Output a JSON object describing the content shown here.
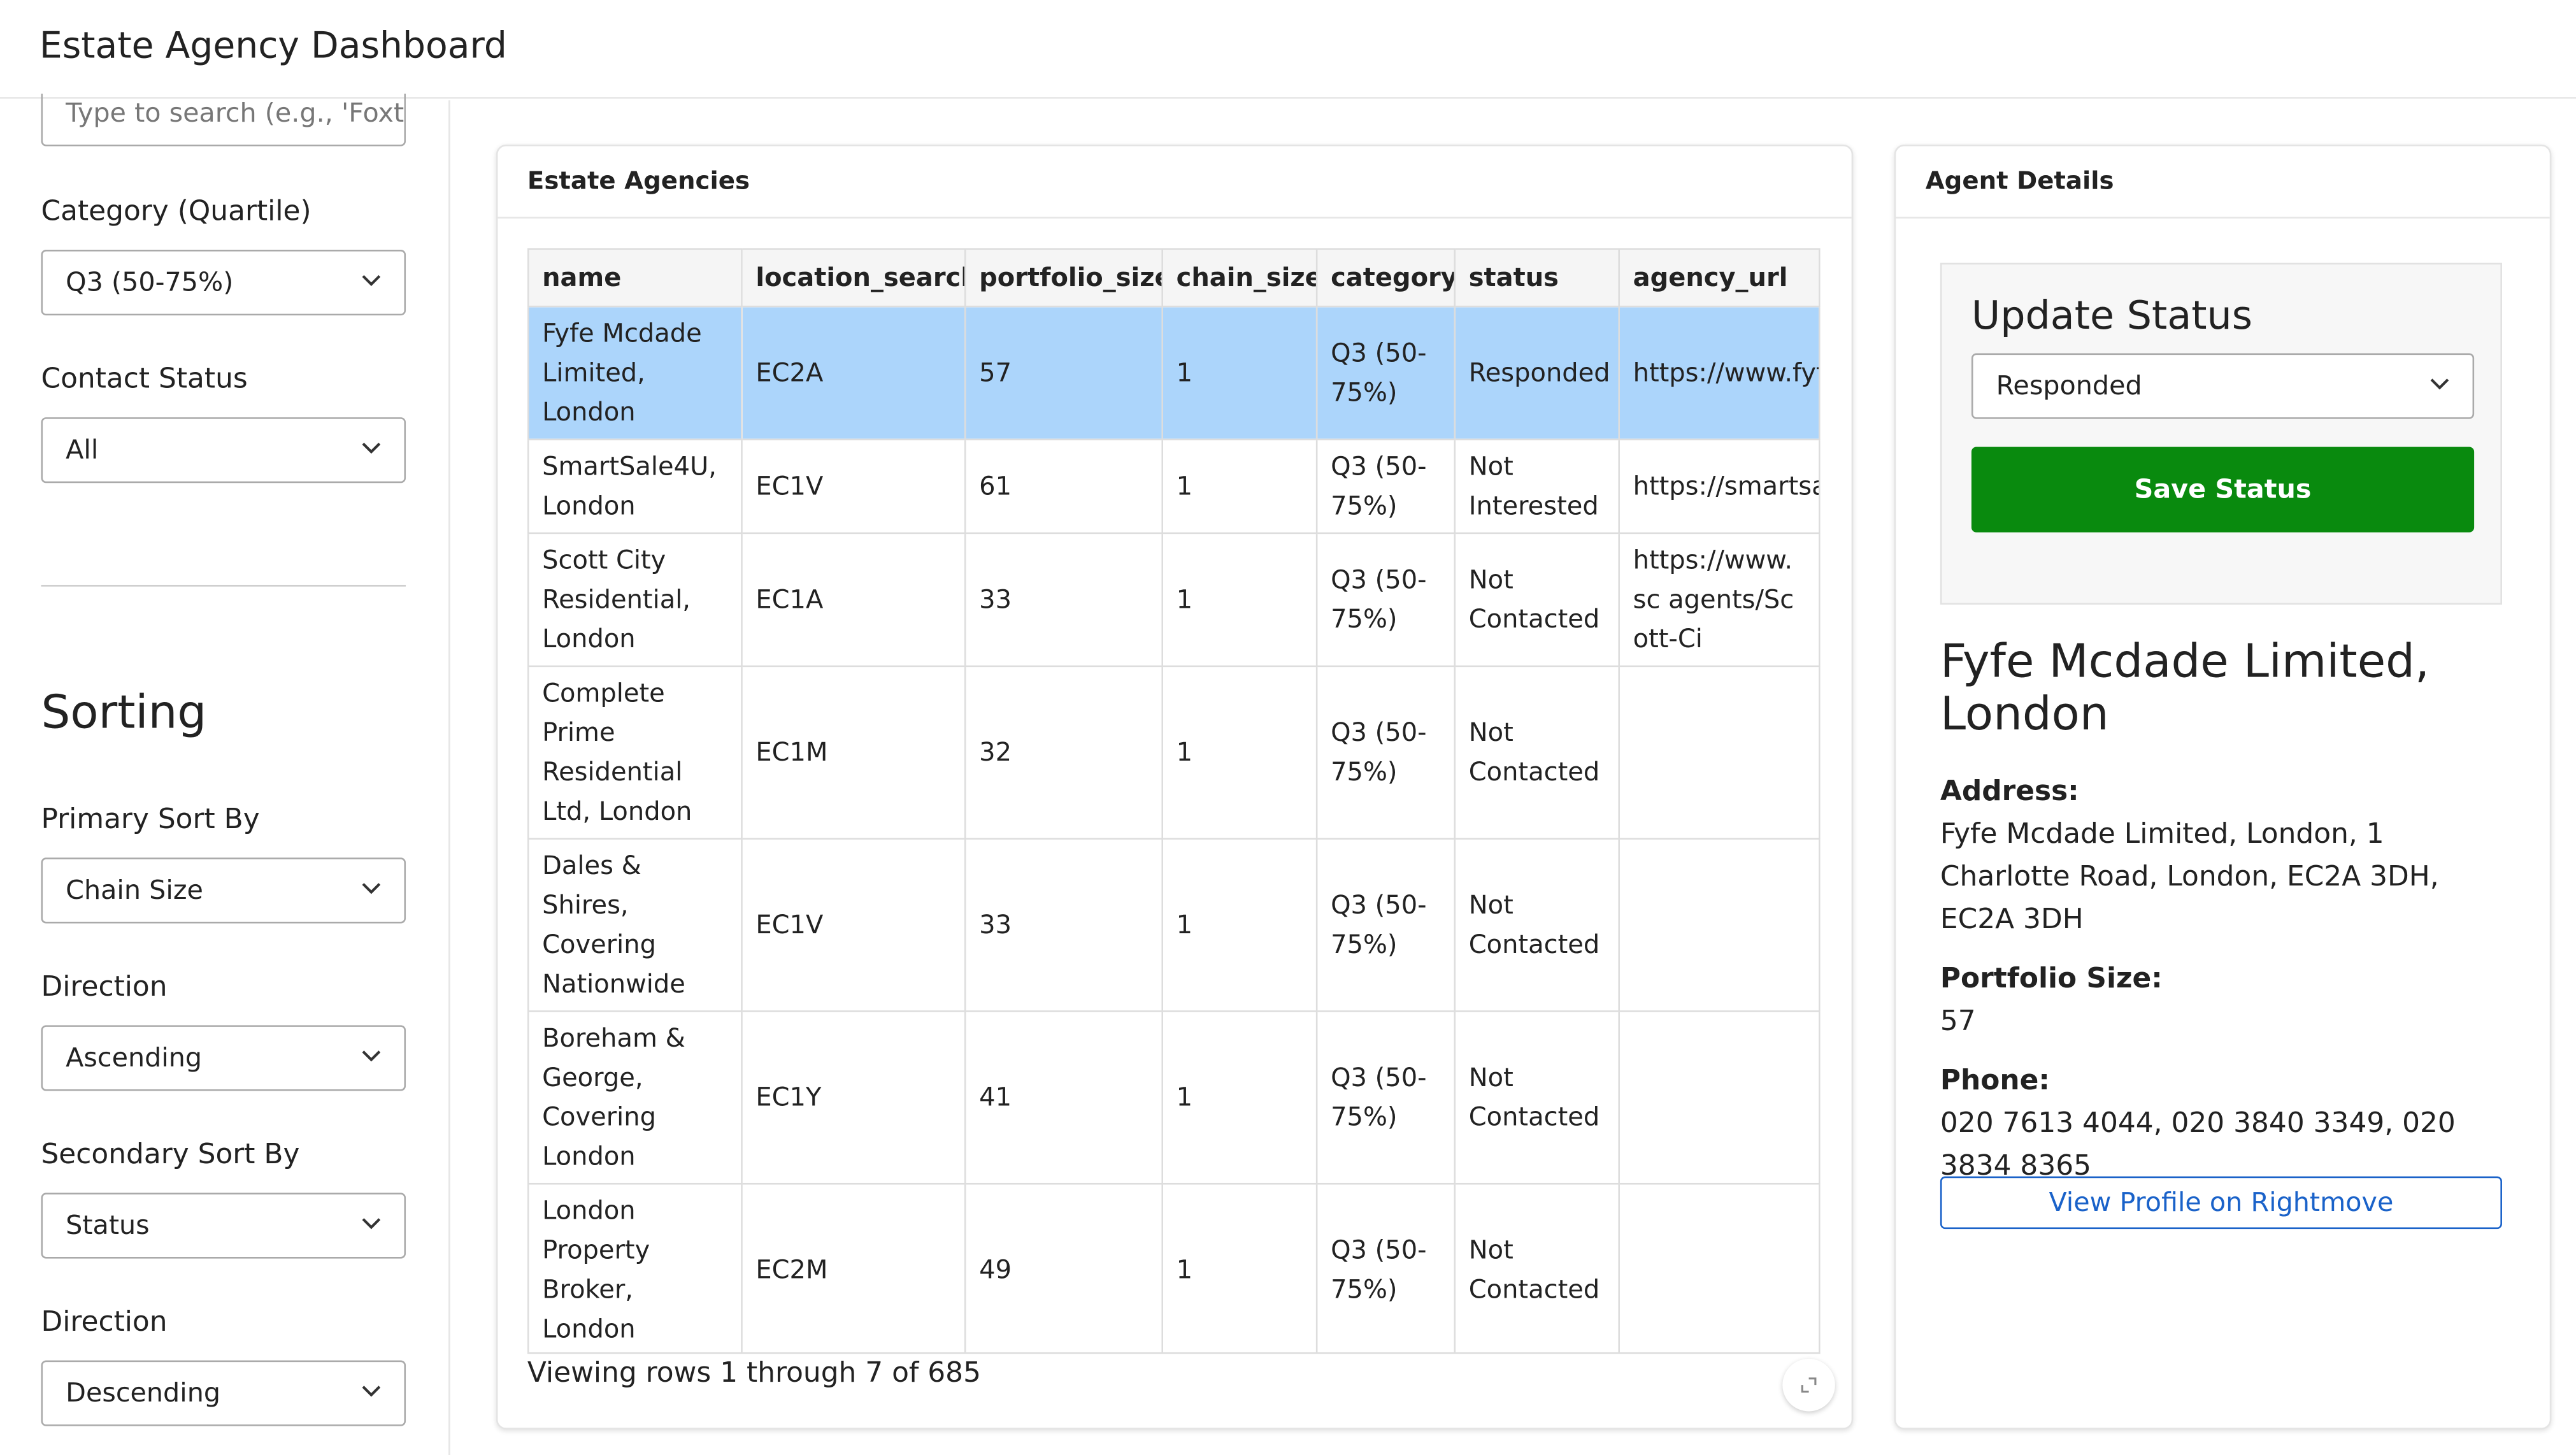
{
  "header": {
    "title": "Estate Agency Dashboard"
  },
  "sidebar": {
    "search_placeholder": "Type to search (e.g., 'Foxt",
    "filters": [
      {
        "label": "Category (Quartile)",
        "value": "Q3 (50-75%)"
      },
      {
        "label": "Contact Status",
        "value": "All"
      }
    ],
    "sorting_title": "Sorting",
    "sorts": [
      {
        "label": "Primary Sort By",
        "value": "Chain Size"
      },
      {
        "label": "Direction",
        "value": "Ascending"
      },
      {
        "label": "Secondary Sort By",
        "value": "Status"
      },
      {
        "label": "Direction",
        "value": "Descending"
      }
    ]
  },
  "table": {
    "title": "Estate Agencies",
    "columns": [
      "name",
      "location_search",
      "portfolio_size",
      "chain_size",
      "category",
      "status",
      "agency_url"
    ],
    "rows": [
      [
        "Fyfe Mcdade Limited, London",
        "EC2A",
        57,
        1,
        "Q3 (50-75%)",
        "Responded",
        "https://www.fyf"
      ],
      [
        "SmartSale4U, London",
        "EC1V",
        61,
        1,
        "Q3 (50-75%)",
        "Not Interested",
        "https://smartsa"
      ],
      [
        "Scott City Residential, London",
        "EC1A",
        33,
        1,
        "Q3 (50-75%)",
        "Not Contacted",
        "https://www.sc agents/Scott-Ci"
      ],
      [
        "Complete Prime Residential Ltd, London",
        "EC1M",
        32,
        1,
        "Q3 (50-75%)",
        "Not Contacted",
        ""
      ],
      [
        "Dales & Shires, Covering Nationwide",
        "EC1V",
        33,
        1,
        "Q3 (50-75%)",
        "Not Contacted",
        ""
      ],
      [
        "Boreham & George, Covering London",
        "EC1Y",
        41,
        1,
        "Q3 (50-75%)",
        "Not Contacted",
        ""
      ],
      [
        "London Property Broker, London",
        "EC2M",
        49,
        1,
        "Q3 (50-75%)",
        "Not Contacted",
        ""
      ]
    ],
    "footer": "Viewing rows 1 through 7 of 685"
  },
  "details": {
    "title": "Agent Details",
    "update_title": "Update Status",
    "status_value": "Responded",
    "save_button": "Save Status",
    "agent_name": "Fyfe Mcdade Limited, London",
    "fields": [
      {
        "label": "Address:",
        "value": "Fyfe Mcdade Limited, London, 1 Charlotte Road, London, EC2A 3DH, EC2A 3DH"
      },
      {
        "label": "Portfolio Size:",
        "value": "57"
      },
      {
        "label": "Phone:",
        "value": "020 7613 4044, 020 3840 3349, 020 3834 8365"
      }
    ],
    "profile_button": "View Profile on Rightmove"
  }
}
